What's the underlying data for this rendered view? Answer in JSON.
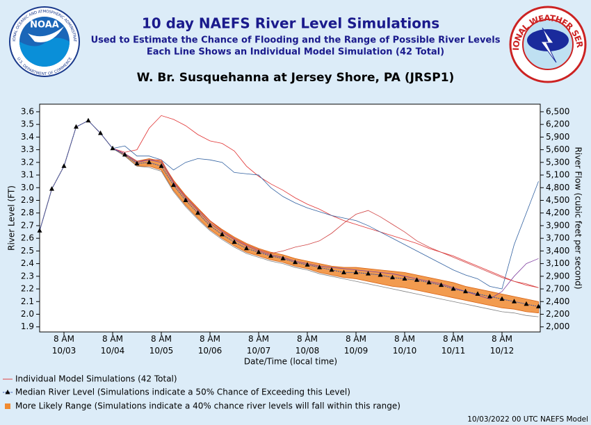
{
  "chart_data": {
    "type": "line",
    "title": "10 day NAEFS River Level Simulations",
    "subtitle": "Used to Estimate the Chance of Flooding and the Range of Possible River Levels",
    "subtitle2": "Each Line Shows an Individual Model Simulation (42 Total)",
    "station": "W. Br. Susquehanna at Jersey Shore, PA (JRSP1)",
    "x_label": "Date/Time (local time)",
    "y_label": "River Level (FT)",
    "y2_label": "River Flow (cubic feet per second)",
    "footer": "10/03/2022 00 UTC NAEFS Model",
    "noaa_logo": "NOAA",
    "noaa_ring": "NATIONAL OCEANIC AND ATMOSPHERIC ADMINISTRATION",
    "noaa_ring2": "U.S. DEPARTMENT OF COMMERCE",
    "nws_ring": "NATIONAL WEATHER SERVICE",
    "categories": [
      null,
      null,
      "8 AM\n10/03",
      null,
      null,
      null,
      "8 AM\n10/04",
      null,
      null,
      null,
      "8 AM\n10/05",
      null,
      null,
      null,
      "8 AM\n10/06",
      null,
      null,
      null,
      "8 AM\n10/07",
      null,
      null,
      null,
      "8 AM\n10/08",
      null,
      null,
      null,
      "8 AM\n10/09",
      null,
      null,
      null,
      "8 AM\n10/10",
      null,
      null,
      null,
      "8 AM\n10/11",
      null,
      null,
      null,
      "8 AM\n10/12",
      null,
      null,
      null
    ],
    "ylim": [
      1.86,
      3.66
    ],
    "yticks": [
      1.9,
      {
        "value": 2,
        "label": "2.0"
      },
      2.1,
      2.2,
      2.3,
      2.4,
      2.5,
      2.6,
      2.7,
      2.8,
      2.9,
      {
        "value": 3,
        "label": "3.0"
      },
      3.1,
      3.2,
      3.3,
      3.4,
      3.5,
      3.6
    ],
    "y2ticks": [
      {
        "value": 2000,
        "label": "2,000"
      },
      {
        "value": 2200,
        "label": "2,200"
      },
      {
        "value": 2400,
        "label": "2,400"
      },
      {
        "value": 2700,
        "label": "2,700"
      },
      {
        "value": 2900,
        "label": "2,900"
      },
      {
        "value": 3100,
        "label": "3,100"
      },
      {
        "value": 3400,
        "label": "3,400"
      },
      {
        "value": 3700,
        "label": "3,700"
      },
      {
        "value": 3900,
        "label": "3,900"
      },
      {
        "value": 4200,
        "label": "4,200"
      },
      {
        "value": 4500,
        "label": "4,500"
      },
      {
        "value": 4800,
        "label": "4,800"
      },
      {
        "value": 5100,
        "label": "5,100"
      },
      {
        "value": 5300,
        "label": "5,300"
      },
      {
        "value": 5600,
        "label": "5,600"
      },
      {
        "value": 5900,
        "label": "5,900"
      },
      {
        "value": 6200,
        "label": "6,200"
      },
      {
        "value": 6500,
        "label": "6,500"
      }
    ],
    "simulations": {
      "name": "Individual Model Simulations (42 Total)",
      "color": "#e04040",
      "members": [
        {
          "color": "#e03030",
          "values": [
            2.66,
            2.99,
            3.17,
            3.48,
            3.53,
            3.43,
            3.31,
            3.28,
            3.3,
            3.47,
            3.57,
            3.54,
            3.49,
            3.42,
            3.37,
            3.35,
            3.29,
            3.17,
            3.09,
            3.03,
            2.98,
            2.92,
            2.87,
            2.83,
            2.78,
            2.74,
            2.71,
            2.68,
            2.65,
            2.62,
            2.59,
            2.56,
            2.52,
            2.49,
            2.46,
            2.42,
            2.38,
            2.34,
            2.3,
            2.26,
            2.23,
            2.21
          ]
        },
        {
          "color": "#3060a0",
          "values": [
            2.66,
            2.99,
            3.17,
            3.48,
            3.53,
            3.43,
            3.31,
            3.33,
            3.25,
            3.25,
            3.22,
            3.14,
            3.2,
            3.23,
            3.22,
            3.2,
            3.12,
            3.11,
            3.1,
            3.0,
            2.93,
            2.88,
            2.84,
            2.81,
            2.78,
            2.76,
            2.74,
            2.7,
            2.65,
            2.6,
            2.55,
            2.5,
            2.45,
            2.4,
            2.35,
            2.31,
            2.28,
            2.22,
            2.2,
            2.55,
            2.8,
            3.05
          ]
        },
        {
          "color": "#d04040",
          "values": [
            2.66,
            2.99,
            3.17,
            3.48,
            3.53,
            3.43,
            3.31,
            3.27,
            3.21,
            3.22,
            3.22,
            3.05,
            2.93,
            2.83,
            2.74,
            2.66,
            2.6,
            2.55,
            2.51,
            2.48,
            2.5,
            2.53,
            2.55,
            2.58,
            2.64,
            2.72,
            2.79,
            2.82,
            2.77,
            2.71,
            2.65,
            2.58,
            2.53,
            2.49,
            2.45,
            2.41,
            2.37,
            2.33,
            2.29,
            2.26,
            2.24,
            2.21
          ]
        },
        {
          "color": "#8040a0",
          "values": [
            2.66,
            2.99,
            3.17,
            3.48,
            3.53,
            3.43,
            3.31,
            3.27,
            3.2,
            3.22,
            3.2,
            3.04,
            2.92,
            2.82,
            2.72,
            2.65,
            2.59,
            2.54,
            2.5,
            2.47,
            2.45,
            2.42,
            2.4,
            2.38,
            2.37,
            2.36,
            2.35,
            2.34,
            2.33,
            2.32,
            2.3,
            2.28,
            2.26,
            2.24,
            2.21,
            2.18,
            2.15,
            2.12,
            2.18,
            2.3,
            2.4,
            2.44
          ]
        },
        {
          "color": "#808080",
          "values": [
            2.66,
            2.99,
            3.17,
            3.48,
            3.53,
            3.43,
            3.31,
            3.25,
            3.17,
            3.16,
            3.13,
            2.97,
            2.85,
            2.75,
            2.66,
            2.59,
            2.53,
            2.48,
            2.45,
            2.42,
            2.4,
            2.37,
            2.35,
            2.32,
            2.3,
            2.28,
            2.26,
            2.24,
            2.22,
            2.2,
            2.18,
            2.16,
            2.14,
            2.12,
            2.1,
            2.08,
            2.06,
            2.04,
            2.02,
            2.01,
            1.99,
            1.98
          ]
        }
      ]
    },
    "range": {
      "name": "More Likely Range (Simulations indicate a 40% chance river levels will fall within this range)",
      "color": "#f08a30",
      "upper": [
        2.66,
        2.99,
        3.17,
        3.48,
        3.53,
        3.43,
        3.31,
        3.27,
        3.21,
        3.23,
        3.21,
        3.06,
        2.94,
        2.84,
        2.74,
        2.67,
        2.61,
        2.56,
        2.52,
        2.49,
        2.47,
        2.44,
        2.42,
        2.4,
        2.38,
        2.37,
        2.37,
        2.36,
        2.35,
        2.34,
        2.33,
        2.31,
        2.29,
        2.27,
        2.25,
        2.22,
        2.2,
        2.18,
        2.16,
        2.14,
        2.12,
        2.1
      ],
      "lower": [
        2.66,
        2.99,
        3.17,
        3.48,
        3.53,
        3.43,
        3.31,
        3.25,
        3.17,
        3.17,
        3.14,
        2.98,
        2.86,
        2.76,
        2.67,
        2.6,
        2.54,
        2.49,
        2.46,
        2.43,
        2.41,
        2.38,
        2.36,
        2.33,
        2.31,
        2.29,
        2.28,
        2.26,
        2.24,
        2.22,
        2.21,
        2.19,
        2.17,
        2.15,
        2.13,
        2.11,
        2.09,
        2.07,
        2.05,
        2.04,
        2.02,
        2.01
      ]
    },
    "median": {
      "name": "Median River Level (Simulations indicate a 50% Chance of Exceeding this Level)",
      "color": "#000000",
      "values": [
        2.66,
        2.99,
        3.17,
        3.48,
        3.53,
        3.43,
        3.31,
        3.26,
        3.19,
        3.2,
        3.17,
        3.02,
        2.9,
        2.8,
        2.7,
        2.63,
        2.57,
        2.52,
        2.49,
        2.46,
        2.44,
        2.41,
        2.39,
        2.37,
        2.35,
        2.33,
        2.33,
        2.32,
        2.31,
        2.29,
        2.28,
        2.27,
        2.25,
        2.23,
        2.2,
        2.18,
        2.16,
        2.14,
        2.12,
        2.1,
        2.08,
        2.06
      ]
    }
  }
}
